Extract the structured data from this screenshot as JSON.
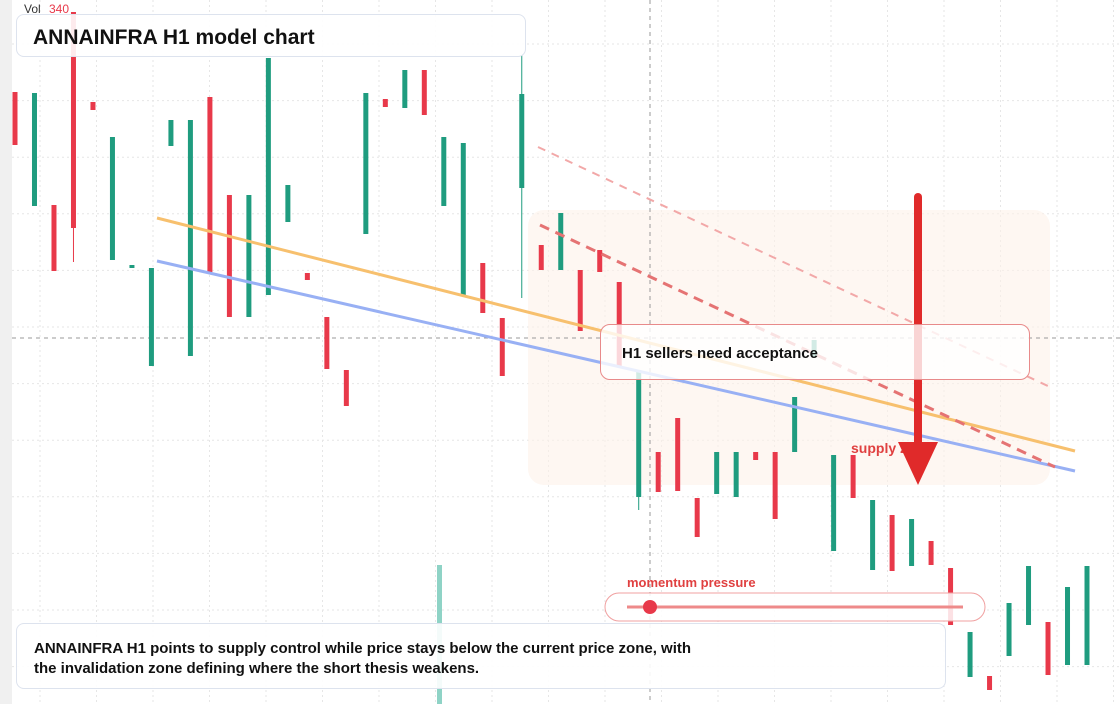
{
  "chart_data": {
    "type": "candlestick",
    "title": "ANNAINFRA H1 model chart",
    "volume_label": "Vol",
    "volume_value": "340",
    "callout": "H1 sellers need acceptance",
    "zone_label": "supply zone",
    "momentum_label": "momentum pressure",
    "note": "ANNAINFRA H1 points to supply control while price stays below the current price zone, with the invalidation zone defining where the short thesis weakens.",
    "up_color": "#1f9c7f",
    "down_color": "#e8394a",
    "ylim": [
      0,
      704
    ],
    "candles": [
      [
        612,
        612,
        559,
        559
      ],
      [
        498,
        611,
        498,
        611
      ],
      [
        499,
        499,
        433,
        433
      ],
      [
        692,
        692,
        442,
        476
      ],
      [
        602,
        602,
        594,
        594
      ],
      [
        444,
        567,
        444,
        567
      ],
      [
        436,
        439,
        436,
        439
      ],
      [
        338,
        436,
        338,
        436
      ],
      [
        558,
        584,
        558,
        584
      ],
      [
        348,
        584,
        348,
        584
      ],
      [
        607,
        607,
        432,
        432
      ],
      [
        509,
        509,
        387,
        387
      ],
      [
        387,
        509,
        387,
        509
      ],
      [
        409,
        646,
        409,
        646
      ],
      [
        482,
        519,
        482,
        519
      ],
      [
        431,
        431,
        424,
        424
      ],
      [
        387,
        387,
        335,
        335
      ],
      [
        334,
        334,
        298,
        298
      ],
      [
        470,
        611,
        470,
        611
      ],
      [
        605,
        605,
        597,
        597
      ],
      [
        596,
        634,
        596,
        634
      ],
      [
        634,
        634,
        589,
        589
      ],
      [
        498,
        567,
        498,
        567
      ],
      [
        408,
        561,
        408,
        561
      ],
      [
        441,
        441,
        391,
        391
      ],
      [
        386,
        386,
        328,
        328
      ],
      [
        516,
        649,
        406,
        610
      ],
      [
        459,
        459,
        434,
        434
      ],
      [
        434,
        491,
        434,
        491
      ],
      [
        434,
        434,
        373,
        373
      ],
      [
        454,
        454,
        432,
        432
      ],
      [
        422,
        422,
        338,
        338
      ],
      [
        207,
        334,
        194,
        334
      ],
      [
        252,
        252,
        212,
        212
      ],
      [
        286,
        286,
        213,
        213
      ],
      [
        206,
        206,
        167,
        167
      ],
      [
        210,
        252,
        210,
        252
      ],
      [
        207,
        252,
        207,
        252
      ],
      [
        252,
        252,
        244,
        244
      ],
      [
        252,
        252,
        185,
        185
      ],
      [
        252,
        307,
        252,
        307
      ],
      [
        347,
        364,
        347,
        364
      ],
      [
        153,
        249,
        153,
        249
      ],
      [
        249,
        249,
        206,
        206
      ],
      [
        134,
        204,
        134,
        204
      ],
      [
        189,
        189,
        133,
        133
      ],
      [
        138,
        185,
        138,
        185
      ],
      [
        163,
        163,
        139,
        139
      ],
      [
        136,
        136,
        79,
        79
      ],
      [
        27,
        72,
        27,
        72
      ],
      [
        28,
        28,
        14,
        14
      ],
      [
        48,
        101,
        48,
        101
      ],
      [
        79,
        138,
        79,
        138
      ],
      [
        82,
        82,
        29,
        29
      ],
      [
        39,
        117,
        39,
        117
      ],
      [
        39,
        138,
        39,
        138
      ]
    ]
  }
}
